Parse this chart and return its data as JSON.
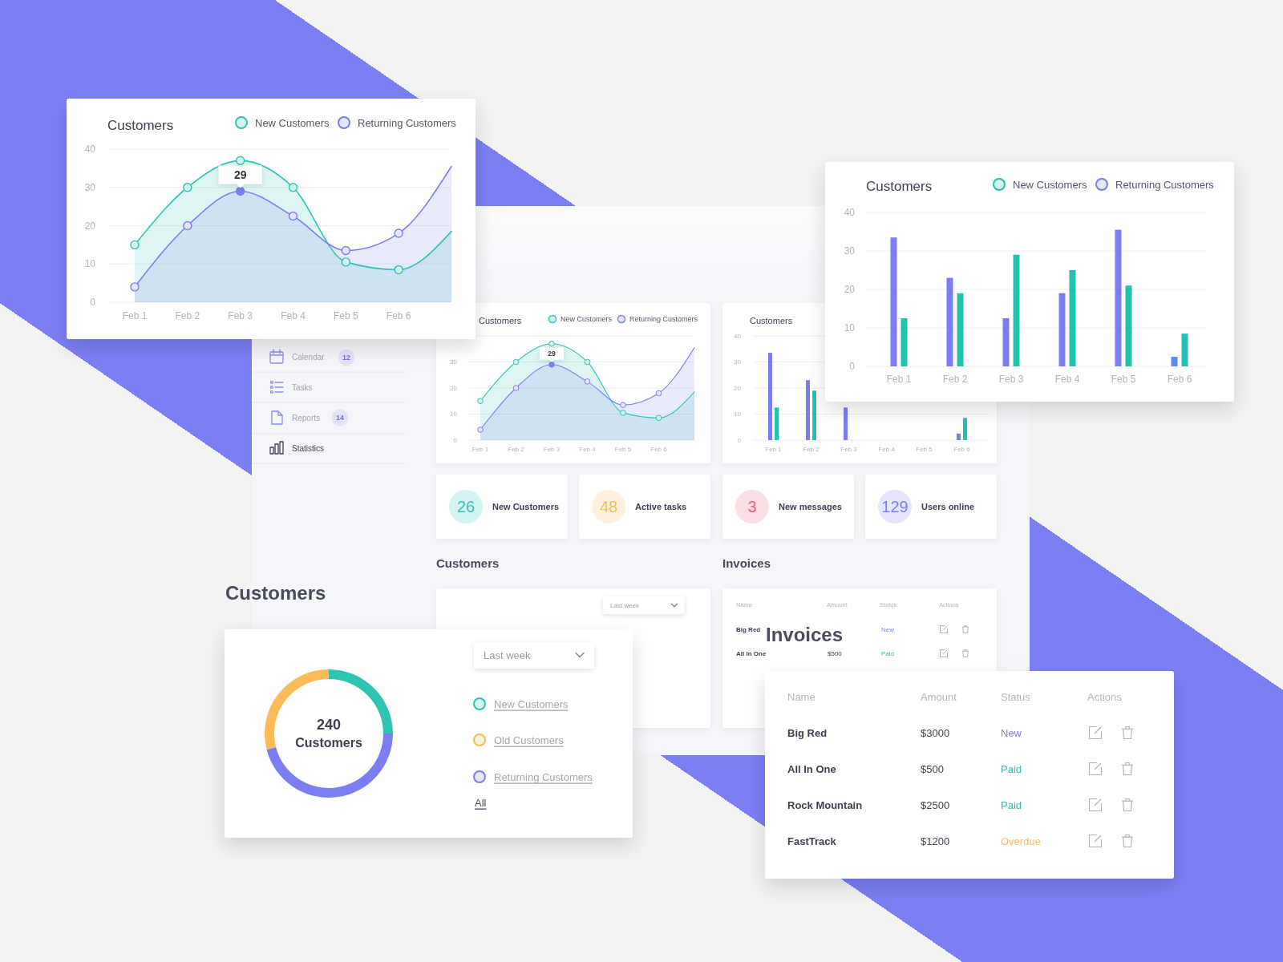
{
  "chart_data": [
    {
      "type": "area",
      "title": "Customers",
      "categories": [
        "Feb 1",
        "Feb 2",
        "Feb 3",
        "Feb 4",
        "Feb 5",
        "Feb 6",
        null
      ],
      "series": [
        {
          "name": "New Customers",
          "color": "#2ec4b4",
          "values": [
            15,
            30,
            37,
            30,
            10.5,
            8.5,
            18.5
          ]
        },
        {
          "name": "Returning Customers",
          "color": "#7b7ef3",
          "values": [
            4,
            20,
            29,
            22.5,
            13.5,
            18,
            35.5
          ],
          "value_labels": [
            null,
            null,
            "29",
            null,
            null,
            null,
            null
          ]
        }
      ],
      "ylim": [
        0,
        40
      ],
      "yticks": [
        0,
        10,
        20,
        30,
        40
      ],
      "grid": "y",
      "legend": "top right",
      "marker": "circle"
    },
    {
      "type": "bar",
      "title": "Customers",
      "categories": [
        "Feb 1",
        "Feb 2",
        "Feb 3",
        "Feb 4",
        "Feb 5",
        "Feb 6"
      ],
      "series": [
        {
          "name": "New Customers",
          "color": "#22c1b0",
          "values": [
            12.5,
            19,
            29,
            25,
            21,
            8.5
          ]
        },
        {
          "name": "Returning Customers",
          "color": "#7b7cf4",
          "colors": [
            "#7b7cf4",
            "#7b7cf4",
            "#7b7cf4",
            "#7b7cf4",
            "#7b7cf4",
            "#5b8cf0"
          ],
          "values": [
            33.5,
            23,
            12.5,
            19,
            35.5,
            2.5
          ]
        }
      ],
      "ylim": [
        0,
        40
      ],
      "yticks": [
        0,
        10,
        20,
        30,
        40
      ],
      "grid": "y",
      "legend": "top right"
    },
    {
      "type": "donut",
      "title": "Customers",
      "categories": [
        "New Customers",
        "Old Customers",
        "Returning Customers"
      ],
      "values": [
        25,
        29,
        46
      ],
      "colors": [
        "#2ec4b4",
        "#fdbb58",
        "#7b7ef3"
      ],
      "legend": "right",
      "annotations": [
        "240",
        "Customers",
        "Last week",
        "All"
      ]
    },
    {
      "type": "other",
      "title": "Invoices",
      "annotations": [
        "Name",
        "Amount",
        "Status",
        "Actions",
        "Big Red",
        "$3000",
        "New",
        "All In One",
        "$500",
        "Paid",
        "Rock Mountain",
        "$2500",
        "Paid",
        "FastTrack",
        "$1200",
        "Overdue"
      ],
      "colors": [
        "#7b7ef3",
        "#2ec4b4",
        "#2ec4b4",
        "#fdbb58"
      ]
    },
    {
      "type": "area",
      "title": "Customers",
      "categories": [
        "Feb 1",
        "Feb 2",
        "Feb 3",
        "Feb 4",
        "Feb 5",
        "Feb 6",
        null
      ],
      "series": [
        {
          "name": "New Customers",
          "color": "#2ec4b4",
          "values": [
            15,
            30,
            37,
            30,
            10.5,
            8.5,
            18.5
          ]
        },
        {
          "name": "Returning Customers",
          "color": "#7b7ef3",
          "values": [
            4,
            20,
            29,
            22.5,
            13.5,
            18,
            35.5
          ],
          "value_labels": [
            null,
            null,
            "29",
            null,
            null,
            null,
            null
          ]
        }
      ],
      "ylim": [
        0,
        40
      ],
      "yticks": [
        0,
        10,
        20,
        30
      ],
      "grid": "y",
      "legend": "top right",
      "marker": "circle"
    },
    {
      "type": "bar",
      "title": "Customers",
      "categories": [
        "Feb 1",
        "Feb 2",
        "Feb 3",
        "Feb 4",
        "Feb 5",
        "Feb 6"
      ],
      "series": [
        {
          "color": "#22c1b0",
          "values": [
            12.5,
            19,
            null,
            null,
            null,
            8.5
          ]
        },
        {
          "colors": [
            "#7b7cf4",
            "#7b7cf4",
            "#7b7cf4",
            null,
            null,
            "#5b8cf0"
          ],
          "values": [
            33.5,
            23,
            12.5,
            null,
            null,
            2.5
          ]
        }
      ],
      "ylim": [
        0,
        40
      ],
      "yticks": [
        0,
        10,
        20,
        30,
        40
      ],
      "grid": "y"
    },
    {
      "type": "other",
      "annotations": [
        "Calendar",
        "12",
        "Tasks",
        "Reports",
        "14",
        "Statistics"
      ]
    },
    {
      "type": "other",
      "annotations": [
        "26",
        "New Customers",
        "48",
        "Active tasks",
        "3",
        "New messages",
        "129",
        "Users online"
      ],
      "colors": [
        "#2ec4b4",
        "#fdbb58",
        "#f25c7c",
        "#7b7ef3"
      ]
    },
    {
      "type": "other",
      "title": "Customers",
      "annotations": [
        "Last week"
      ]
    },
    {
      "type": "other",
      "title": "Invoices",
      "annotations": [
        "Name",
        "Amount",
        "Status",
        "Actions",
        "Big Red",
        "New",
        "All In One",
        "$500",
        "Paid"
      ],
      "colors": [
        "#7b7ef3",
        "#2ec4b4"
      ]
    }
  ]
}
